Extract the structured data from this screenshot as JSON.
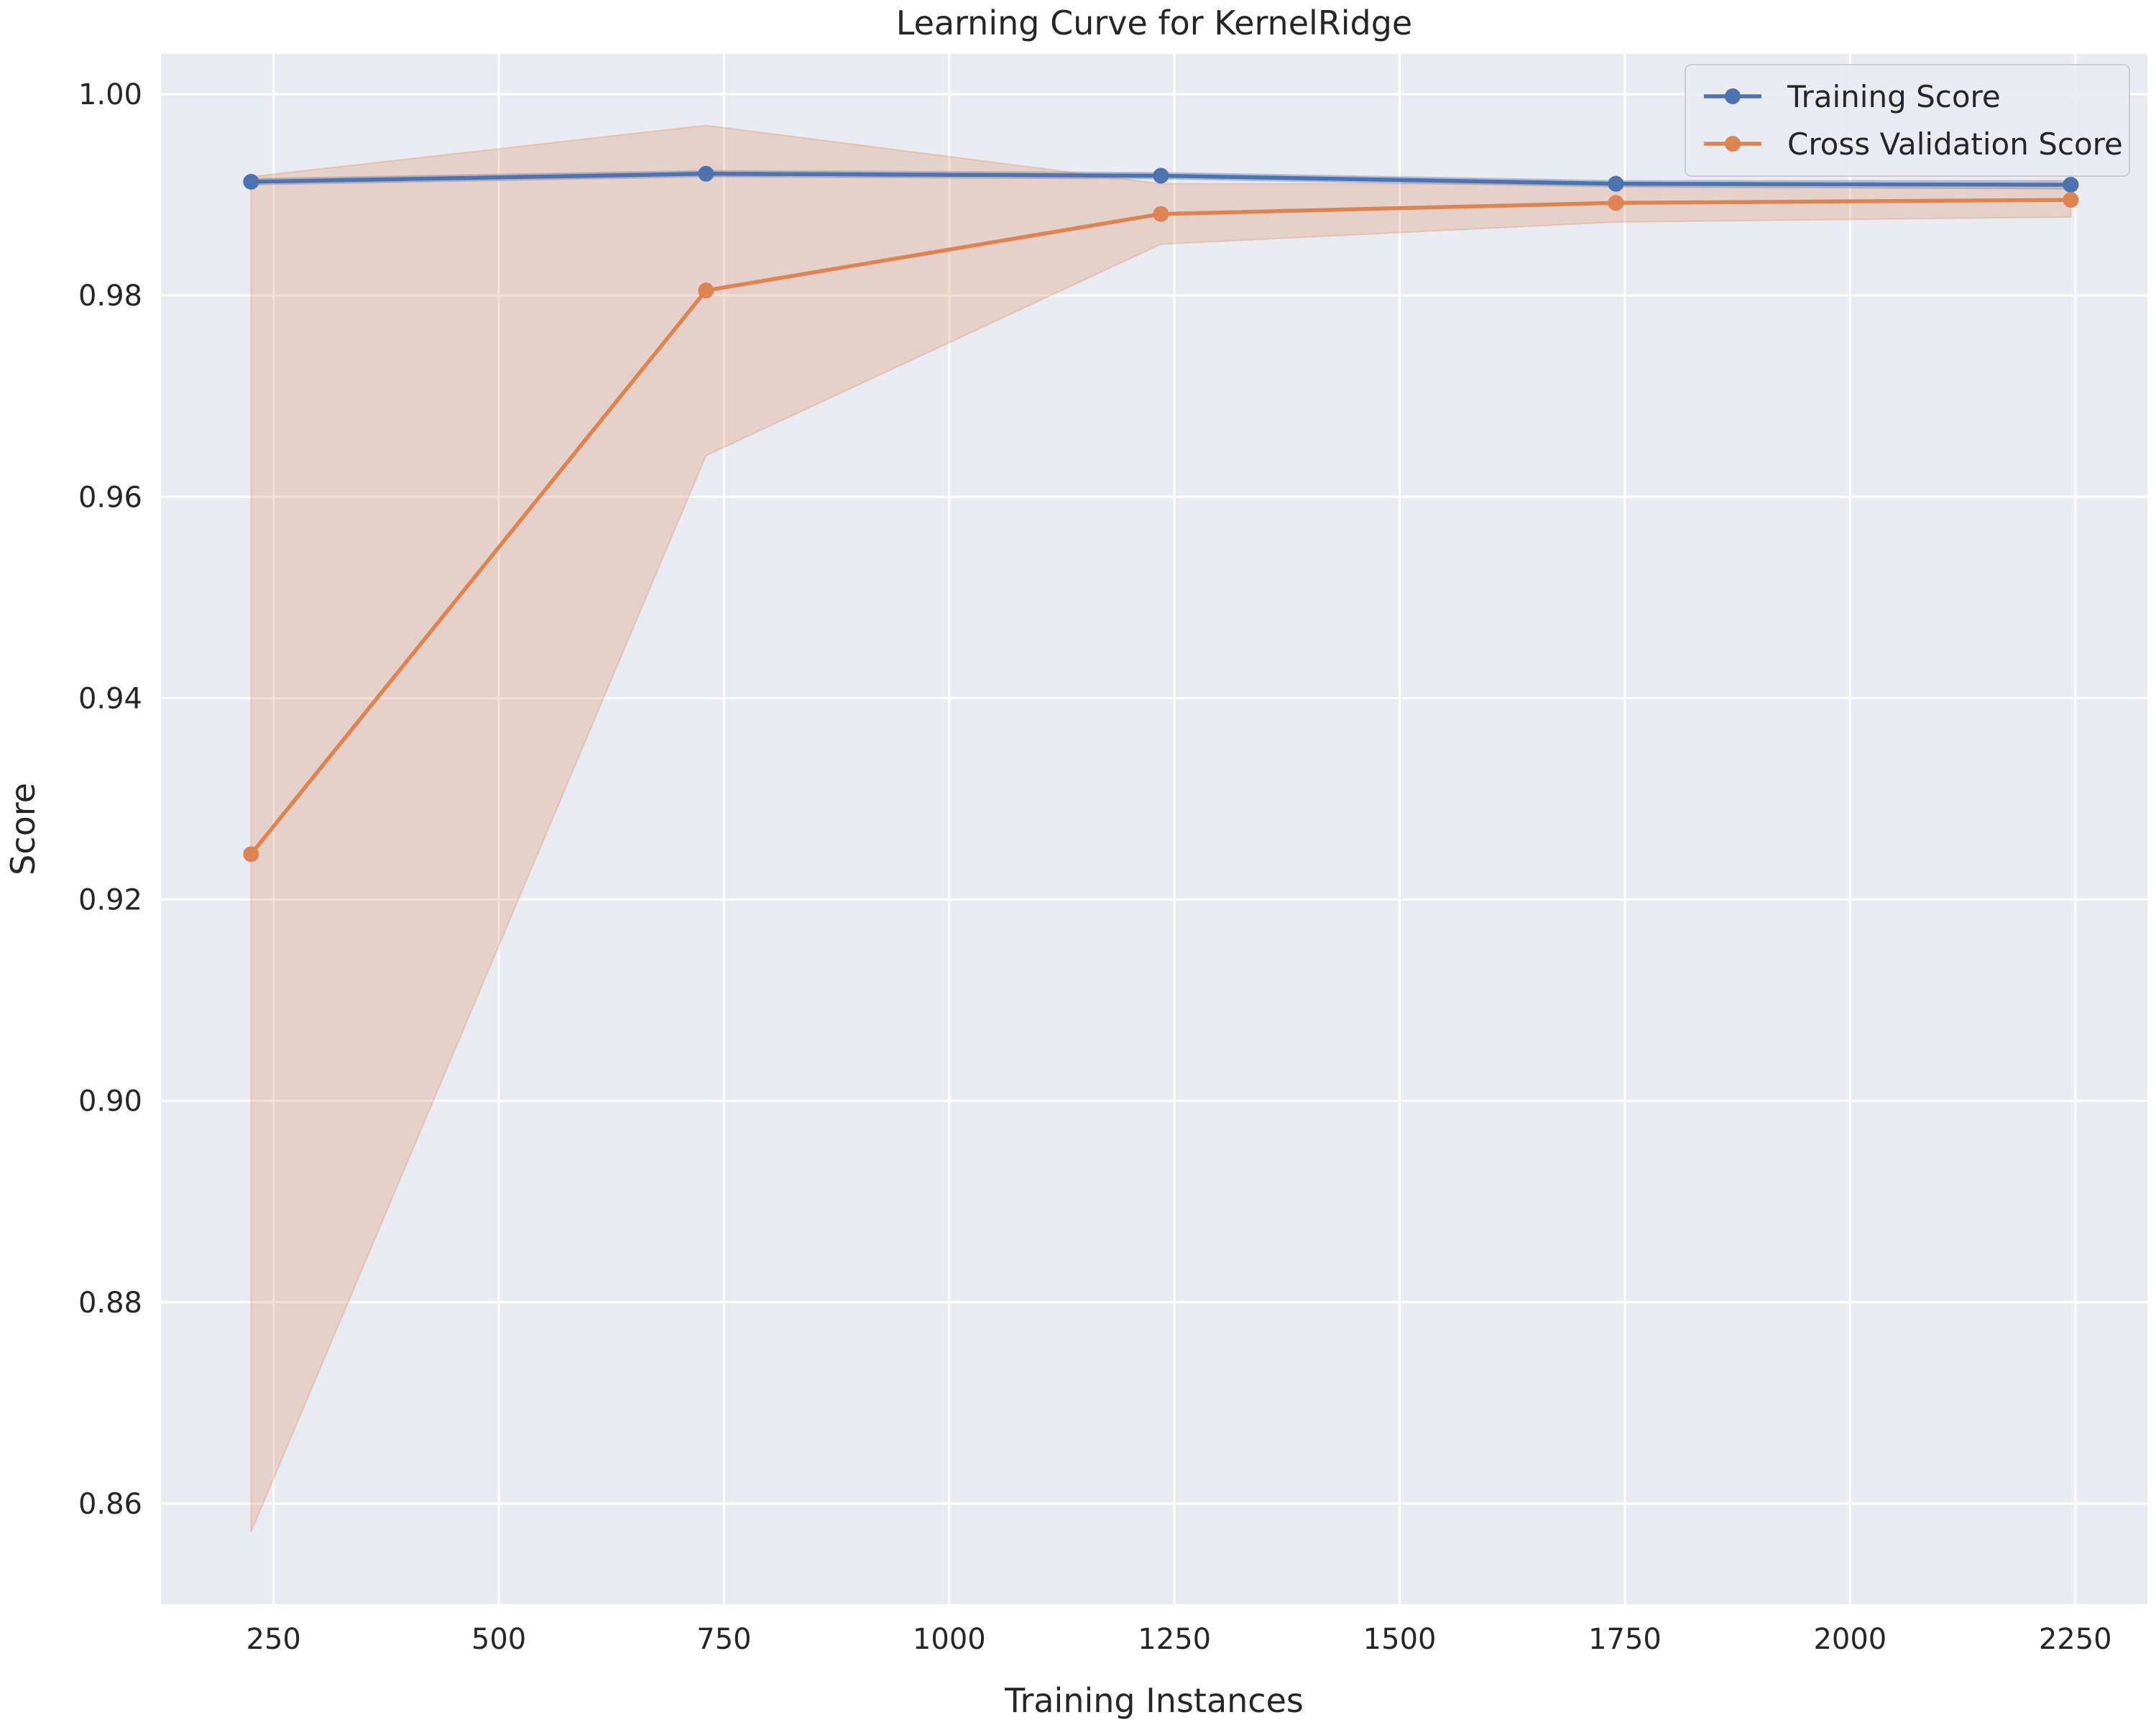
{
  "chart_data": {
    "type": "line",
    "title": "Learning Curve for KernelRidge",
    "xlabel": "Training Instances",
    "ylabel": "Score",
    "xlim": [
      125,
      2330
    ],
    "ylim": [
      0.85,
      1.004
    ],
    "xticks": [
      250,
      500,
      750,
      1000,
      1250,
      1500,
      1750,
      2000,
      2250
    ],
    "yticks": [
      0.86,
      0.88,
      0.9,
      0.92,
      0.94,
      0.96,
      0.98,
      1.0
    ],
    "xtick_labels": [
      "250",
      "500",
      "750",
      "1000",
      "1250",
      "1500",
      "1750",
      "2000",
      "2250"
    ],
    "ytick_labels": [
      "0.86",
      "0.88",
      "0.90",
      "0.92",
      "0.94",
      "0.96",
      "0.98",
      "1.00"
    ],
    "grid": true,
    "legend_position": "top-right",
    "x": [
      225,
      730,
      1235,
      1740,
      2245
    ],
    "series": [
      {
        "name": "Training Score",
        "color": "#4c72b0",
        "values": [
          0.9913,
          0.9921,
          0.9919,
          0.9911,
          0.991
        ],
        "lower": [
          0.991,
          0.9918,
          0.9916,
          0.9908,
          0.9906
        ],
        "upper": [
          0.9916,
          0.9924,
          0.9922,
          0.9914,
          0.9914
        ]
      },
      {
        "name": "Cross Validation Score",
        "color": "#dd8452",
        "values": [
          0.9245,
          0.9805,
          0.9881,
          0.9892,
          0.9895
        ],
        "lower": [
          0.8572,
          0.9641,
          0.9851,
          0.9873,
          0.9878
        ],
        "upper": [
          0.9918,
          0.9969,
          0.9911,
          0.9911,
          0.9912
        ]
      }
    ]
  }
}
